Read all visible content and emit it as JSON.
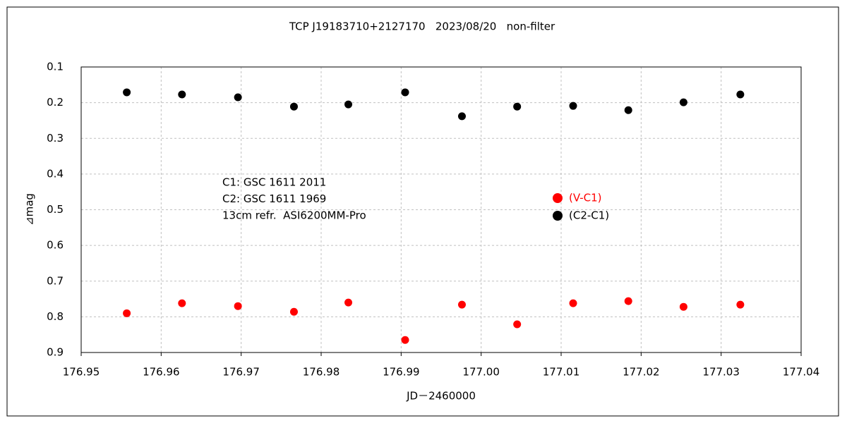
{
  "chart_data": {
    "type": "scatter",
    "title": "TCP J19183710+2127170   2023/08/20   non-filter",
    "x_label": "JD－2460000",
    "y_label": "⊿mag",
    "annotations": [
      "C1: GSC 1611 2011",
      "C2: GSC 1611 1969",
      "13cm refr.  ASI6200MM-Pro"
    ],
    "x": [
      176.9557,
      176.9626,
      176.9696,
      176.9766,
      176.9834,
      176.9905,
      176.9976,
      177.0045,
      177.0115,
      177.0184,
      177.0253,
      177.0324
    ],
    "series": [
      {
        "name": "(V-C1)",
        "color": "#ff0000",
        "values": [
          0.79,
          0.762,
          0.77,
          0.786,
          0.76,
          0.865,
          0.766,
          0.821,
          0.762,
          0.756,
          0.772,
          0.766
        ]
      },
      {
        "name": "(C2-C1)",
        "color": "#000000",
        "values": [
          0.171,
          0.177,
          0.185,
          0.211,
          0.205,
          0.171,
          0.238,
          0.211,
          0.209,
          0.221,
          0.199,
          0.177
        ]
      }
    ],
    "xlim": [
      176.95,
      177.04
    ],
    "xticks": [
      176.95,
      176.96,
      176.97,
      176.98,
      176.99,
      {
        "value": 177,
        "label": "177.00"
      },
      177.01,
      177.02,
      177.03,
      177.04
    ],
    "ylim": [
      0.1,
      0.9
    ],
    "yticks": [
      0.1,
      0.2,
      0.3,
      0.4,
      0.5,
      0.6,
      0.7,
      0.8,
      0.9
    ],
    "y_inverted": true,
    "grid": true
  }
}
